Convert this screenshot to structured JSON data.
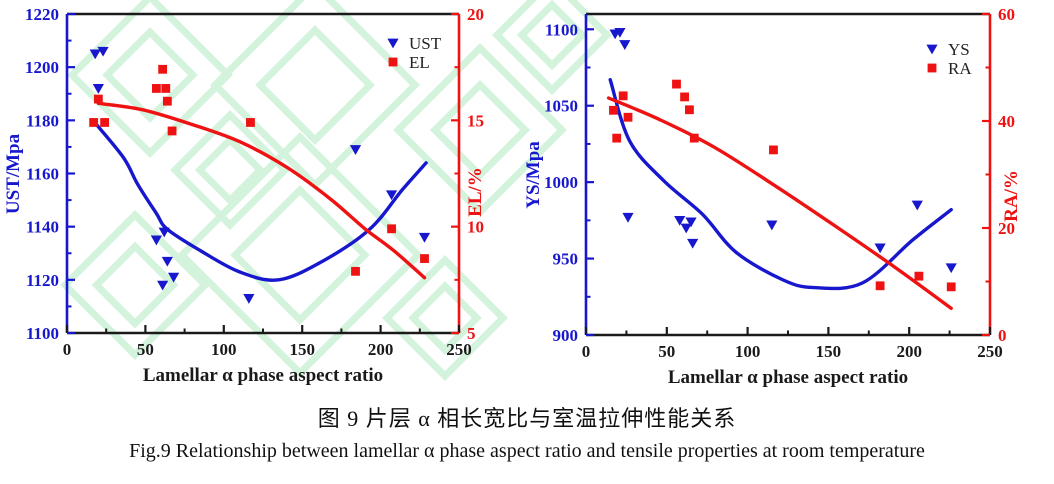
{
  "figure": {
    "caption_zh": "图 9 片层 α 相长宽比与室温拉伸性能关系",
    "caption_en": "Fig.9 Relationship between lamellar α phase aspect ratio and tensile properties at room temperature"
  },
  "colors": {
    "blue": "#1717cd",
    "red": "#ee1212",
    "black": "#1a1a1a",
    "watermark_green": "#b9edc7",
    "background": "#ffffff"
  },
  "chart_data": [
    {
      "type": "scatter",
      "title": "",
      "xlabel": "Lamellar α phase aspect ratio",
      "x_axis": {
        "range": [
          0,
          250
        ],
        "ticks": [
          0,
          50,
          100,
          150,
          200,
          250
        ],
        "minor_step": 25
      },
      "left_axis": {
        "label": "UST/Mpa",
        "range": [
          1100,
          1220
        ],
        "ticks": [
          1100,
          1120,
          1140,
          1160,
          1180,
          1200,
          1220
        ],
        "minor_step": 10,
        "color": "#1717cd"
      },
      "right_axis": {
        "label": "EL/%",
        "range": [
          5,
          20
        ],
        "ticks": [
          5,
          10,
          15,
          20
        ],
        "minor_step": 2.5,
        "color": "#ee1212"
      },
      "legend": [
        {
          "label": "UST",
          "marker": "triangle-down",
          "color": "#1717cd"
        },
        {
          "label": "EL",
          "marker": "square",
          "color": "#ee1212"
        }
      ],
      "series": [
        {
          "name": "UST",
          "axis": "left",
          "marker": "triangle-down",
          "color": "#1717cd",
          "points": [
            [
              18,
              1205
            ],
            [
              23,
              1206
            ],
            [
              20,
              1192
            ],
            [
              57,
              1135
            ],
            [
              62,
              1138
            ],
            [
              64,
              1127
            ],
            [
              68,
              1121
            ],
            [
              61,
              1118
            ],
            [
              116,
              1113
            ],
            [
              184,
              1169
            ],
            [
              207,
              1152
            ],
            [
              228,
              1136
            ]
          ]
        },
        {
          "name": "EL",
          "axis": "right",
          "marker": "square",
          "color": "#ee1212",
          "points": [
            [
              20,
              16
            ],
            [
              17,
              14.9
            ],
            [
              24,
              14.9
            ],
            [
              61,
              17.4
            ],
            [
              57,
              16.5
            ],
            [
              63,
              16.5
            ],
            [
              64,
              15.9
            ],
            [
              67,
              14.5
            ],
            [
              117,
              14.9
            ],
            [
              207,
              9.9
            ],
            [
              228,
              8.5
            ],
            [
              184,
              7.9
            ]
          ]
        }
      ],
      "fits": [
        {
          "name": "UST-fit",
          "axis": "left",
          "color": "#1717cd",
          "points": [
            [
              18,
              1179
            ],
            [
              36,
              1166
            ],
            [
              45,
              1156
            ],
            [
              57,
              1145
            ],
            [
              64,
              1139
            ],
            [
              85,
              1131
            ],
            [
              110,
              1123
            ],
            [
              135,
              1120
            ],
            [
              163,
              1127
            ],
            [
              193,
              1139
            ],
            [
              214,
              1154
            ],
            [
              229,
              1164
            ]
          ]
        },
        {
          "name": "EL-fit",
          "axis": "right",
          "color": "#ee1212",
          "points": [
            [
              20,
              15.8
            ],
            [
              48,
              15.5
            ],
            [
              80,
              14.8
            ],
            [
              110,
              14.0
            ],
            [
              140,
              12.8
            ],
            [
              168,
              11.3
            ],
            [
              190,
              9.9
            ],
            [
              208,
              8.9
            ],
            [
              228,
              7.6
            ]
          ]
        }
      ]
    },
    {
      "type": "scatter",
      "title": "",
      "xlabel": "Lamellar α phase aspect ratio",
      "x_axis": {
        "range": [
          0,
          250
        ],
        "ticks": [
          0,
          50,
          100,
          150,
          200,
          250
        ],
        "minor_step": 25
      },
      "left_axis": {
        "label": "YS/Mpa",
        "range": [
          900,
          1110
        ],
        "ticks": [
          900,
          950,
          1000,
          1050,
          1100
        ],
        "minor_step": 25,
        "color": "#1717cd"
      },
      "right_axis": {
        "label": "RA/%",
        "range": [
          0,
          60
        ],
        "ticks": [
          0,
          20,
          40,
          60
        ],
        "minor_step": 10,
        "color": "#ee1212"
      },
      "legend": [
        {
          "label": "YS",
          "marker": "triangle-down",
          "color": "#1717cd"
        },
        {
          "label": "RA",
          "marker": "square",
          "color": "#ee1212"
        }
      ],
      "series": [
        {
          "name": "YS",
          "axis": "left",
          "marker": "triangle-down",
          "color": "#1717cd",
          "points": [
            [
              18,
              1097
            ],
            [
              21,
              1098
            ],
            [
              24,
              1090
            ],
            [
              26,
              977
            ],
            [
              58,
              975
            ],
            [
              62,
              970
            ],
            [
              65,
              974
            ],
            [
              66,
              960
            ],
            [
              115,
              972
            ],
            [
              182,
              957
            ],
            [
              205,
              985
            ],
            [
              226,
              944
            ]
          ]
        },
        {
          "name": "RA",
          "axis": "right",
          "marker": "square",
          "color": "#ee1212",
          "points": [
            [
              17,
              42
            ],
            [
              23,
              44.7
            ],
            [
              19,
              36.8
            ],
            [
              26,
              40.7
            ],
            [
              56,
              46.9
            ],
            [
              61,
              44.5
            ],
            [
              64,
              42.1
            ],
            [
              67,
              36.8
            ],
            [
              116,
              34.6
            ],
            [
              182,
              9.2
            ],
            [
              206,
              11
            ],
            [
              226,
              9
            ]
          ]
        }
      ],
      "fits": [
        {
          "name": "YS-fit",
          "axis": "left",
          "color": "#1717cd",
          "points": [
            [
              15,
              1067
            ],
            [
              27,
              1027
            ],
            [
              48,
              1001
            ],
            [
              72,
              979
            ],
            [
              93,
              954
            ],
            [
              122,
              936
            ],
            [
              141,
              931
            ],
            [
              171,
              934
            ],
            [
              202,
              962
            ],
            [
              226,
              982
            ]
          ]
        },
        {
          "name": "RA-fit",
          "axis": "right",
          "color": "#ee1212",
          "points": [
            [
              14,
              44.3
            ],
            [
              46,
              40.2
            ],
            [
              80,
              35
            ],
            [
              120,
              27.3
            ],
            [
              156,
              20
            ],
            [
              191,
              12.7
            ],
            [
              226,
              5
            ]
          ]
        }
      ]
    }
  ]
}
